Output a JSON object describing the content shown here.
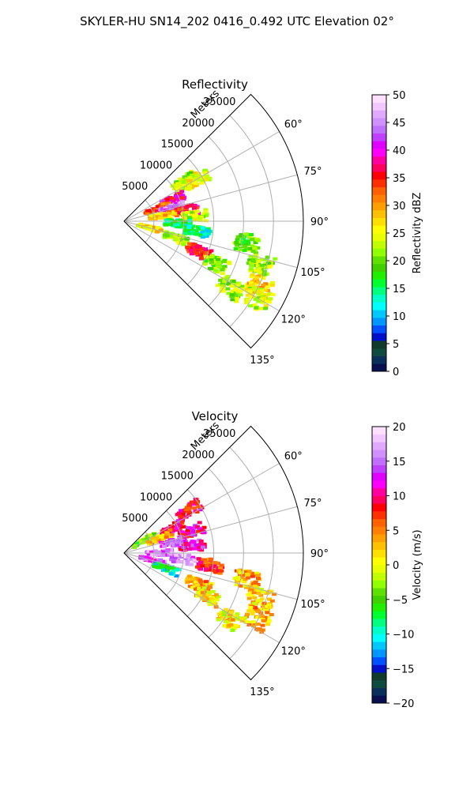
{
  "suptitle": "SKYLER-HU  SN14_202  0416_0.492 UTC Elevation 02°",
  "chart_data": [
    {
      "type": "heatmap",
      "title": "Reflectivity",
      "radial_axis_label": "Meters",
      "radial_ticks": [
        "5000",
        "10000",
        "15000",
        "20000",
        "25000"
      ],
      "radial_tick_values": [
        5000,
        10000,
        15000,
        20000,
        25000
      ],
      "rlim": [
        0,
        30000
      ],
      "azimuth_ticks": [
        "60°",
        "75°",
        "90°",
        "105°",
        "120°",
        "135°"
      ],
      "azimuth_tick_values": [
        60,
        75,
        90,
        105,
        120,
        135
      ],
      "azimuth_range": [
        45,
        135
      ],
      "grid": true,
      "colorbar": {
        "label": "Reflectivity dBZ",
        "min": 0,
        "max": 50,
        "ticks": [
          "0",
          "5",
          "10",
          "15",
          "20",
          "25",
          "30",
          "35",
          "40",
          "45",
          "50"
        ],
        "tick_values": [
          0,
          5,
          10,
          15,
          20,
          25,
          30,
          35,
          40,
          45,
          50
        ],
        "colors": [
          "#08104f",
          "#0a2f5a",
          "#0f4a3f",
          "#123a2c",
          "#0010c8",
          "#0050ff",
          "#0096ff",
          "#00c8ff",
          "#00ffff",
          "#00ffc8",
          "#00ff80",
          "#00ff30",
          "#20f000",
          "#40d000",
          "#60e000",
          "#90ff00",
          "#c0ff00",
          "#e8ff00",
          "#ffff00",
          "#ffe000",
          "#ffc000",
          "#ffa000",
          "#ff8000",
          "#ff6000",
          "#ff3000",
          "#ff0000",
          "#ff0060",
          "#ff00a0",
          "#ff00ff",
          "#e000ff",
          "#c040ff",
          "#c070ff",
          "#d090ff",
          "#e0a8ff",
          "#f0c8ff",
          "#ffe0ff"
        ]
      },
      "echo_cells": [
        {
          "az": 57,
          "r": 12000,
          "value": 22
        },
        {
          "az": 60,
          "r": 14000,
          "value": 25
        },
        {
          "az": 66,
          "r": 9000,
          "value": 38
        },
        {
          "az": 70,
          "r": 6000,
          "value": 33
        },
        {
          "az": 75,
          "r": 8500,
          "value": 44
        },
        {
          "az": 80,
          "r": 10500,
          "value": 36
        },
        {
          "az": 82,
          "r": 6500,
          "value": 28
        },
        {
          "az": 86,
          "r": 12000,
          "value": 24
        },
        {
          "az": 92,
          "r": 9000,
          "value": 15
        },
        {
          "az": 98,
          "r": 12500,
          "value": 14
        },
        {
          "az": 104,
          "r": 4500,
          "value": 27
        },
        {
          "az": 108,
          "r": 9000,
          "value": 22
        },
        {
          "az": 112,
          "r": 13500,
          "value": 35
        },
        {
          "az": 115,
          "r": 17000,
          "value": 21
        },
        {
          "az": 100,
          "r": 21000,
          "value": 20
        },
        {
          "az": 108,
          "r": 24000,
          "value": 22
        },
        {
          "az": 116,
          "r": 25000,
          "value": 28
        },
        {
          "az": 120,
          "r": 26000,
          "value": 24
        },
        {
          "az": 122,
          "r": 21000,
          "value": 22
        }
      ]
    },
    {
      "type": "heatmap",
      "title": "Velocity",
      "radial_axis_label": "Meters",
      "radial_ticks": [
        "5000",
        "10000",
        "15000",
        "20000",
        "25000"
      ],
      "radial_tick_values": [
        5000,
        10000,
        15000,
        20000,
        25000
      ],
      "rlim": [
        0,
        30000
      ],
      "azimuth_ticks": [
        "60°",
        "75°",
        "90°",
        "105°",
        "120°",
        "135°"
      ],
      "azimuth_tick_values": [
        60,
        75,
        90,
        105,
        120,
        135
      ],
      "azimuth_range": [
        45,
        135
      ],
      "grid": true,
      "colorbar": {
        "label": "Velocity (m/s)",
        "min": -20,
        "max": 20,
        "ticks": [
          "−20",
          "−15",
          "−10",
          "−5",
          "0",
          "5",
          "10",
          "15",
          "20"
        ],
        "tick_values": [
          -20,
          -15,
          -10,
          -5,
          0,
          5,
          10,
          15,
          20
        ],
        "colors": [
          "#08104f",
          "#0a2f5a",
          "#0f4a3f",
          "#123a2c",
          "#0010c8",
          "#0050ff",
          "#0096ff",
          "#00c8ff",
          "#00ffff",
          "#00ffc8",
          "#00ff80",
          "#00ff30",
          "#20f000",
          "#40d000",
          "#60e000",
          "#90ff00",
          "#c0ff00",
          "#e8ff00",
          "#ffff00",
          "#ffe000",
          "#ffc000",
          "#ffa000",
          "#ff8000",
          "#ff6000",
          "#ff3000",
          "#ff0000",
          "#ff0060",
          "#ff00a0",
          "#ff00ff",
          "#e000ff",
          "#c040ff",
          "#c070ff",
          "#d090ff",
          "#e0a8ff",
          "#f0c8ff",
          "#ffe0ff"
        ]
      },
      "echo_cells": [
        {
          "az": 57,
          "r": 13000,
          "value": 9
        },
        {
          "az": 58,
          "r": 4000,
          "value": -3
        },
        {
          "az": 63,
          "r": 9000,
          "value": 10
        },
        {
          "az": 67,
          "r": 6500,
          "value": 3
        },
        {
          "az": 72,
          "r": 12000,
          "value": 10
        },
        {
          "az": 78,
          "r": 8500,
          "value": 14
        },
        {
          "az": 84,
          "r": 11500,
          "value": 12
        },
        {
          "az": 90,
          "r": 6000,
          "value": 15
        },
        {
          "az": 96,
          "r": 10000,
          "value": 16
        },
        {
          "az": 104,
          "r": 5000,
          "value": 14
        },
        {
          "az": 110,
          "r": 7500,
          "value": -9
        },
        {
          "az": 113,
          "r": 13500,
          "value": 4
        },
        {
          "az": 117,
          "r": 16000,
          "value": 2
        },
        {
          "az": 98,
          "r": 14500,
          "value": 8
        },
        {
          "az": 102,
          "r": 21000,
          "value": 3
        },
        {
          "az": 108,
          "r": 24000,
          "value": 2
        },
        {
          "az": 116,
          "r": 25000,
          "value": 3
        },
        {
          "az": 122,
          "r": 21000,
          "value": 1
        }
      ]
    }
  ]
}
